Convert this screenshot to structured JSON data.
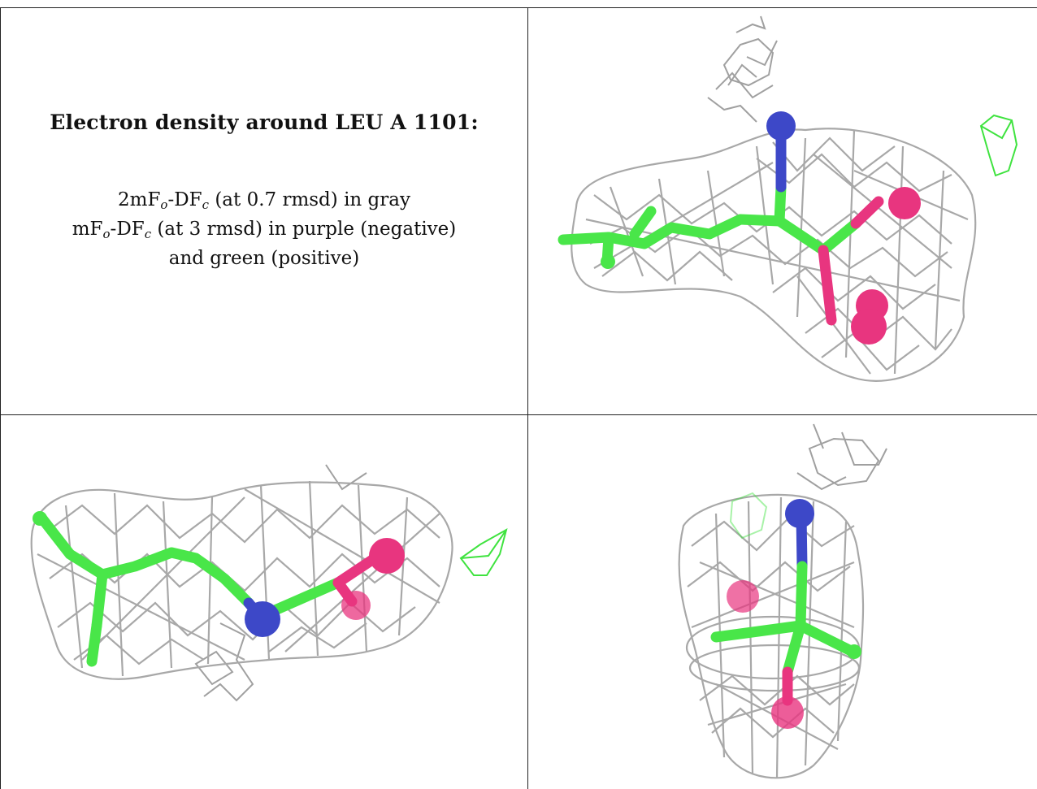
{
  "caption": {
    "title": "Electron density around LEU A 1101:",
    "line1": "2mF",
    "line1_sub1": "o",
    "line1_mid": "-DF",
    "line1_sub2": "c",
    "line1_rest": " (at 0.7 rmsd) in gray",
    "line2": "mF",
    "line2_sub1": "o",
    "line2_mid": "-DF",
    "line2_sub2": "c",
    "line2_rest": " (at 3 rmsd) in purple (negative)",
    "line3": "and green (positive)"
  },
  "colors": {
    "mesh_2fofc": "#a8a8a8",
    "positive_difference": "#3fe33f",
    "carbon": "#49e649",
    "nitrogen": "#3d48c8",
    "oxygen": "#e8357f"
  }
}
